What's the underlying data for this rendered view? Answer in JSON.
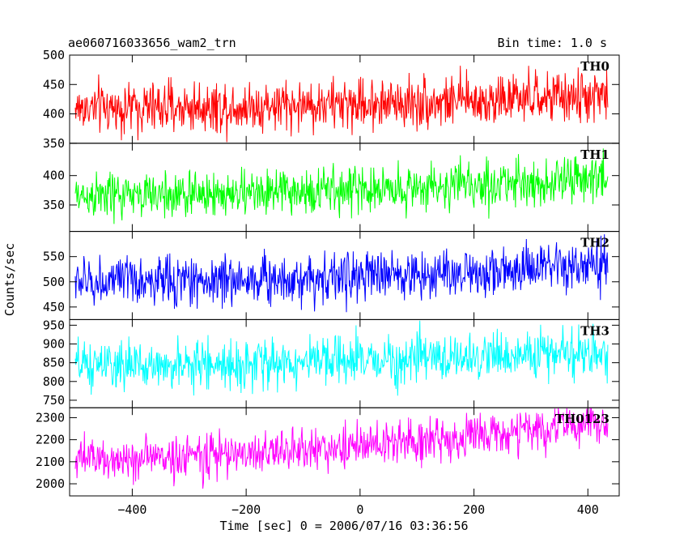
{
  "header": {
    "title": "ae060716033656_wam2_trn",
    "bin_time": "Bin time: 1.0 s"
  },
  "chart_data": {
    "type": "line",
    "title": "ae060716033656_wam2_trn",
    "subtitle": "Bin time: 1.0 s",
    "xlabel": "Time [sec] 0 = 2006/07/16 03:36:56",
    "ylabel": "Counts/sec",
    "xlim": [
      -510,
      455
    ],
    "x_range": [
      -500,
      435
    ],
    "xticks": [
      -400,
      -200,
      0,
      200,
      400
    ],
    "xtick_labels": [
      "−400",
      "−200",
      "0",
      "200",
      "400"
    ],
    "grid": false,
    "panels": [
      {
        "name": "TH0",
        "color": "#ff0000",
        "ylim": [
          350,
          500
        ],
        "yticks": [
          350,
          400,
          450,
          500
        ],
        "ytick_labels": [
          "350",
          "400",
          "450",
          "500"
        ],
        "start_mean": 410,
        "end_mean": 430,
        "noise": 22,
        "lo": 345,
        "hi": 500
      },
      {
        "name": "TH1",
        "color": "#00ff00",
        "ylim": [
          305,
          455
        ],
        "yticks": [
          350,
          400
        ],
        "ytick_labels": [
          "350",
          "400"
        ],
        "start_mean": 365,
        "end_mean": 395,
        "noise": 20,
        "lo": 305,
        "hi": 455
      },
      {
        "name": "TH2",
        "color": "#0000ff",
        "ylim": [
          425,
          600
        ],
        "yticks": [
          450,
          500,
          550
        ],
        "ytick_labels": [
          "450",
          "500",
          "550"
        ],
        "start_mean": 500,
        "end_mean": 530,
        "noise": 25,
        "lo": 425,
        "hi": 600
      },
      {
        "name": "TH3",
        "color": "#00ffff",
        "ylim": [
          730,
          965
        ],
        "yticks": [
          750,
          800,
          850,
          900,
          950
        ],
        "ytick_labels": [
          "750",
          "800",
          "850",
          "900",
          "950"
        ],
        "start_mean": 840,
        "end_mean": 880,
        "noise": 32,
        "lo": 730,
        "hi": 965
      },
      {
        "name": "TH0123",
        "color": "#ff00ff",
        "ylim": [
          1945,
          2345
        ],
        "yticks": [
          2000,
          2100,
          2200,
          2300
        ],
        "ytick_labels": [
          "2000",
          "2100",
          "2200",
          "2300"
        ],
        "start_mean": 2110,
        "end_mean": 2280,
        "noise": 50,
        "lo": 1945,
        "hi": 2345
      }
    ]
  }
}
